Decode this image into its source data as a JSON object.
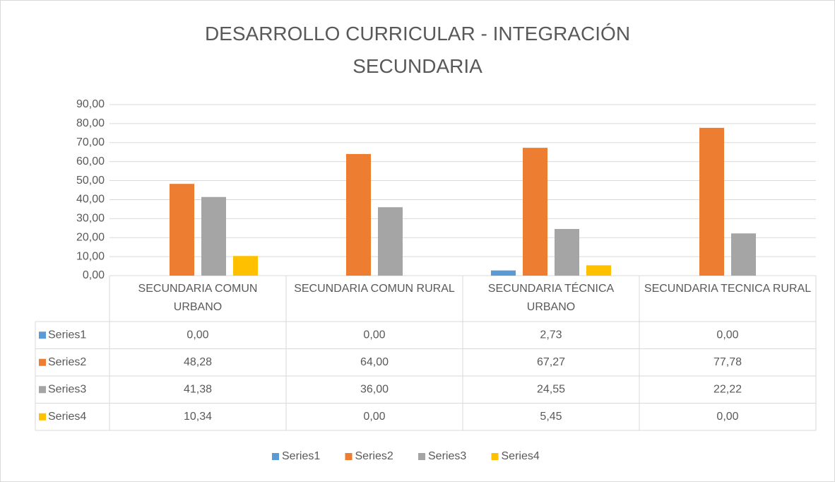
{
  "chart_data": {
    "type": "bar",
    "title": "DESARROLLO CURRICULAR - INTEGRACIÓN SECUNDARIA",
    "categories": [
      "SECUNDARIA COMUN URBANO",
      "SECUNDARIA COMUN RURAL",
      "SECUNDARIA TÉCNICA URBANO",
      "SECUNDARIA TECNICA RURAL"
    ],
    "series": [
      {
        "name": "Series1",
        "color": "#5b9bd5",
        "values": [
          0,
          0,
          2.73,
          0
        ],
        "value_labels": [
          "0,00",
          "0,00",
          "2,73",
          "0,00"
        ]
      },
      {
        "name": "Series2",
        "color": "#ed7d31",
        "values": [
          48.28,
          64,
          67.27,
          77.78
        ],
        "value_labels": [
          "48,28",
          "64,00",
          "67,27",
          "77,78"
        ]
      },
      {
        "name": "Series3",
        "color": "#a5a5a5",
        "values": [
          41.38,
          36,
          24.55,
          22.22
        ],
        "value_labels": [
          "41,38",
          "36,00",
          "24,55",
          "22,22"
        ]
      },
      {
        "name": "Series4",
        "color": "#ffc000",
        "values": [
          10.34,
          0,
          5.45,
          0
        ],
        "value_labels": [
          "10,34",
          "0,00",
          "5,45",
          "0,00"
        ]
      }
    ],
    "ylim": [
      0,
      90
    ],
    "yticks": [
      {
        "value": 0,
        "label": "0,00"
      },
      {
        "value": 10,
        "label": "10,00"
      },
      {
        "value": 20,
        "label": "20,00"
      },
      {
        "value": 30,
        "label": "30,00"
      },
      {
        "value": 40,
        "label": "40,00"
      },
      {
        "value": 50,
        "label": "50,00"
      },
      {
        "value": 60,
        "label": "60,00"
      },
      {
        "value": 70,
        "label": "70,00"
      },
      {
        "value": 80,
        "label": "80,00"
      },
      {
        "value": 90,
        "label": "90,00"
      }
    ],
    "grid": true
  }
}
